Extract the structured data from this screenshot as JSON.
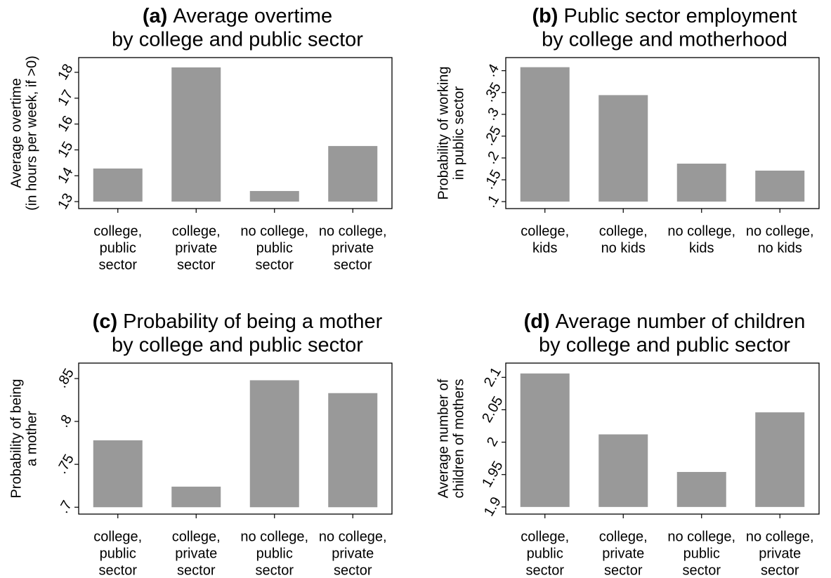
{
  "chart_data": [
    {
      "type": "bar",
      "panel_label": "(a)",
      "title": "Average overtime",
      "subtitle": "by college and public sector",
      "ylabel": [
        "Average overtime",
        "(in hours per week, if >0)"
      ],
      "categories": [
        [
          "college,",
          "public",
          "sector"
        ],
        [
          "college,",
          "private",
          "sector"
        ],
        [
          "no college,",
          "public",
          "sector"
        ],
        [
          "no college,",
          "private",
          "sector"
        ]
      ],
      "values": [
        14.28,
        18.19,
        13.41,
        15.15
      ],
      "color": "#999999",
      "ylim": [
        12.73,
        18.57
      ],
      "yticks": [
        13,
        14,
        15,
        16,
        17,
        18
      ]
    },
    {
      "type": "bar",
      "panel_label": "(b)",
      "title": "Public sector employment",
      "subtitle": "by college and motherhood",
      "ylabel": [
        "Probability of working",
        "in public sector"
      ],
      "categories": [
        [
          "college,",
          "kids"
        ],
        [
          "college,",
          "no kids"
        ],
        [
          "no college,",
          "kids"
        ],
        [
          "no college,",
          "no kids"
        ]
      ],
      "values": [
        0.408,
        0.344,
        0.187,
        0.171
      ],
      "color": "#999999",
      "ylim": [
        0.084,
        0.43
      ],
      "yticks": [
        {
          "value": 0.1,
          "label": ".1"
        },
        {
          "value": 0.15,
          "label": ".15"
        },
        {
          "value": 0.2,
          "label": ".2"
        },
        {
          "value": 0.25,
          "label": ".25"
        },
        {
          "value": 0.3,
          "label": ".3"
        },
        {
          "value": 0.35,
          "label": ".35"
        },
        {
          "value": 0.4,
          "label": ".4"
        }
      ]
    },
    {
      "type": "bar",
      "panel_label": "(c)",
      "title": "Probability of being a mother",
      "subtitle": "by college and public sector",
      "ylabel": [
        "Probability of being",
        "a mother"
      ],
      "categories": [
        [
          "college,",
          "public",
          "sector"
        ],
        [
          "college,",
          "private",
          "sector"
        ],
        [
          "no college,",
          "public",
          "sector"
        ],
        [
          "no college,",
          "private",
          "sector"
        ]
      ],
      "values": [
        0.778,
        0.724,
        0.848,
        0.833
      ],
      "color": "#999999",
      "ylim": [
        0.692,
        0.868
      ],
      "yticks": [
        {
          "value": 0.7,
          "label": ".7"
        },
        {
          "value": 0.75,
          "label": ".75"
        },
        {
          "value": 0.8,
          "label": ".8"
        },
        {
          "value": 0.85,
          "label": ".85"
        }
      ]
    },
    {
      "type": "bar",
      "panel_label": "(d)",
      "title": "Average number of children",
      "subtitle": "by college and public sector",
      "ylabel": [
        "Average number of",
        "children of mothers"
      ],
      "categories": [
        [
          "college,",
          "public",
          "sector"
        ],
        [
          "college,",
          "private",
          "sector"
        ],
        [
          "no college,",
          "public",
          "sector"
        ],
        [
          "no college,",
          "private",
          "sector"
        ]
      ],
      "values": [
        2.106,
        2.012,
        1.954,
        2.046
      ],
      "color": "#999999",
      "ylim": [
        1.889,
        2.122
      ],
      "yticks": [
        1.9,
        1.95,
        2,
        2.05,
        2.1
      ]
    }
  ]
}
